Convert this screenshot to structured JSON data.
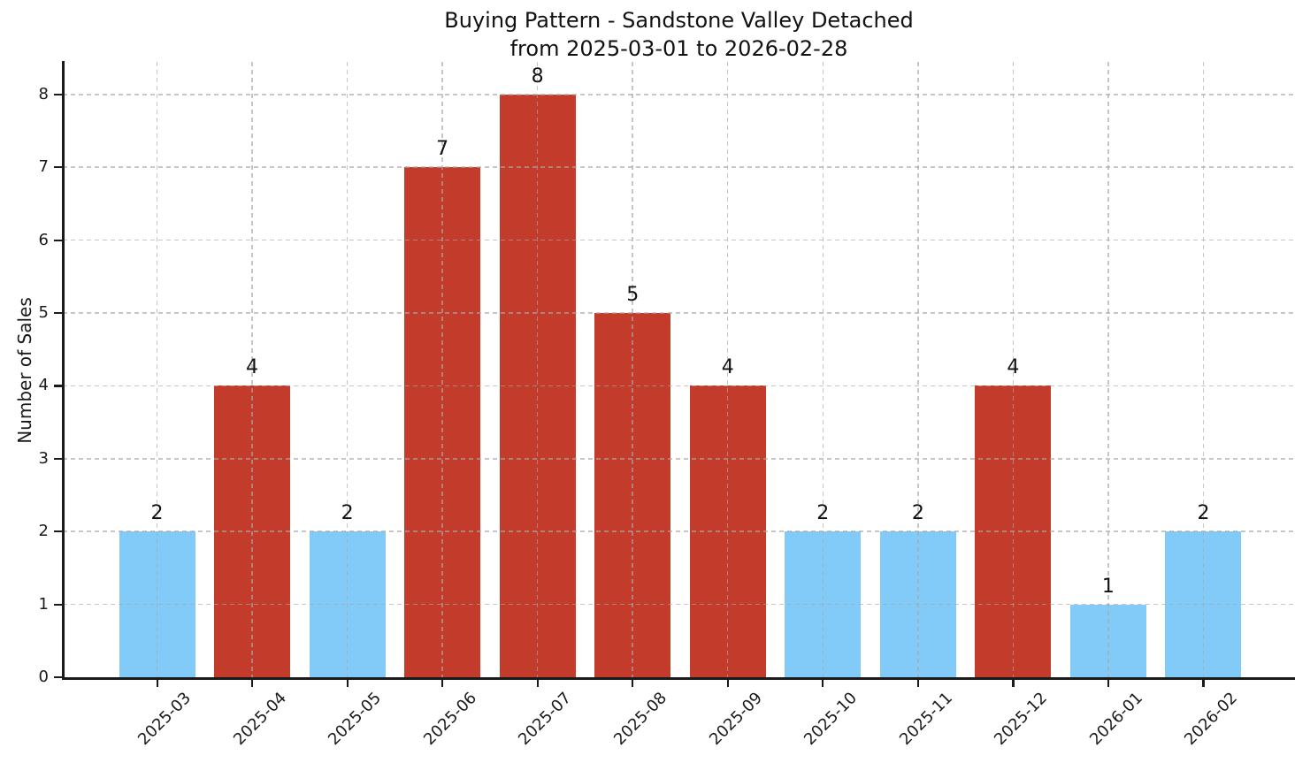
{
  "chart_data": {
    "type": "bar",
    "title_line1": "Buying Pattern - Sandstone Valley Detached",
    "title_line2": "from 2025-03-01 to 2026-02-28",
    "ylabel": "Number of Sales",
    "xlabel": "",
    "categories": [
      "2025-03",
      "2025-04",
      "2025-05",
      "2025-06",
      "2025-07",
      "2025-08",
      "2025-09",
      "2025-10",
      "2025-11",
      "2025-12",
      "2026-01",
      "2026-02"
    ],
    "values": [
      2,
      4,
      2,
      7,
      8,
      5,
      4,
      2,
      2,
      4,
      1,
      2
    ],
    "bar_colors": [
      "#82caf7",
      "#c23b2b",
      "#82caf7",
      "#c23b2b",
      "#c23b2b",
      "#c23b2b",
      "#c23b2b",
      "#82caf7",
      "#82caf7",
      "#c23b2b",
      "#82caf7",
      "#82caf7"
    ],
    "show_value_labels": true,
    "yticks": [
      0,
      1,
      2,
      3,
      4,
      5,
      6,
      7,
      8
    ],
    "ylim": [
      0,
      8.45
    ],
    "grid": "both",
    "grid_style": "dashed",
    "legend": "none",
    "colors": {
      "low_month_bar": "#82caf7",
      "high_month_bar": "#c23b2b",
      "axis": "#1a1a1a",
      "grid": "#a8a8a8",
      "background": "#ffffff",
      "text": "#111111"
    }
  }
}
